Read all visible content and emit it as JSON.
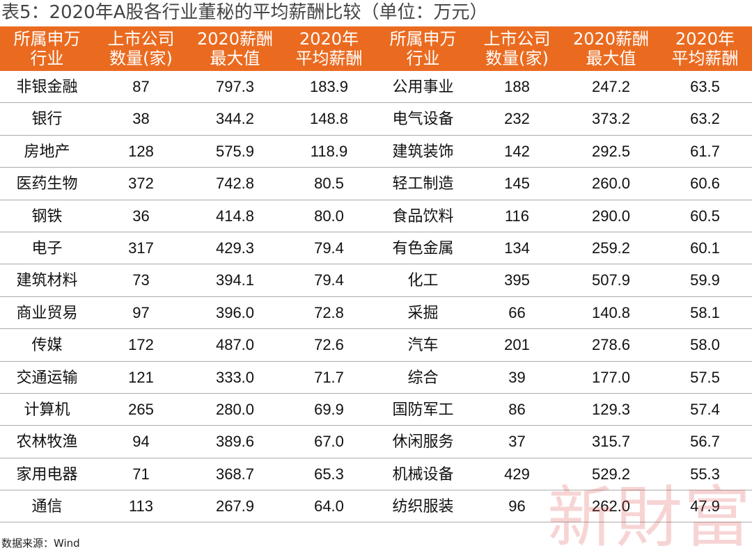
{
  "title": "表5：2020年A股各行业董秘的平均薪酬比较（单位：万元）",
  "table": {
    "headers": [
      [
        "所属申万",
        "行业"
      ],
      [
        "上市公司",
        "数量(家)"
      ],
      [
        "2020薪酬",
        "最大值"
      ],
      [
        "2020年",
        "平均薪酬"
      ],
      [
        "所属申万",
        "行业"
      ],
      [
        "上市公司",
        "数量(家)"
      ],
      [
        "2020薪酬",
        "最大值"
      ],
      [
        "2020年",
        "平均薪酬"
      ]
    ],
    "rows": [
      [
        "非银金融",
        "87",
        "797.3",
        "183.9",
        "公用事业",
        "188",
        "247.2",
        "63.5"
      ],
      [
        "银行",
        "38",
        "344.2",
        "148.8",
        "电气设备",
        "232",
        "373.2",
        "63.2"
      ],
      [
        "房地产",
        "128",
        "575.9",
        "118.9",
        "建筑装饰",
        "142",
        "292.5",
        "61.7"
      ],
      [
        "医药生物",
        "372",
        "742.8",
        "80.5",
        "轻工制造",
        "145",
        "260.0",
        "60.6"
      ],
      [
        "钢铁",
        "36",
        "414.8",
        "80.0",
        "食品饮料",
        "116",
        "290.0",
        "60.5"
      ],
      [
        "电子",
        "317",
        "429.3",
        "79.4",
        "有色金属",
        "134",
        "259.2",
        "60.1"
      ],
      [
        "建筑材料",
        "73",
        "394.1",
        "79.4",
        "化工",
        "395",
        "507.9",
        "59.9"
      ],
      [
        "商业贸易",
        "97",
        "396.0",
        "72.8",
        "采掘",
        "66",
        "140.8",
        "58.1"
      ],
      [
        "传媒",
        "172",
        "487.0",
        "72.6",
        "汽车",
        "201",
        "278.6",
        "58.0"
      ],
      [
        "交通运输",
        "121",
        "333.0",
        "71.7",
        "综合",
        "39",
        "177.0",
        "57.5"
      ],
      [
        "计算机",
        "265",
        "280.0",
        "69.9",
        "国防军工",
        "86",
        "129.3",
        "57.4"
      ],
      [
        "农林牧渔",
        "94",
        "389.6",
        "67.0",
        "休闲服务",
        "37",
        "315.7",
        "56.7"
      ],
      [
        "家用电器",
        "71",
        "368.7",
        "65.3",
        "机械设备",
        "429",
        "529.2",
        "55.3"
      ],
      [
        "通信",
        "113",
        "267.9",
        "64.0",
        "纺织服装",
        "96",
        "262.0",
        "47.9"
      ]
    ]
  },
  "source": "数据来源：Wind",
  "watermark": "新財富"
}
